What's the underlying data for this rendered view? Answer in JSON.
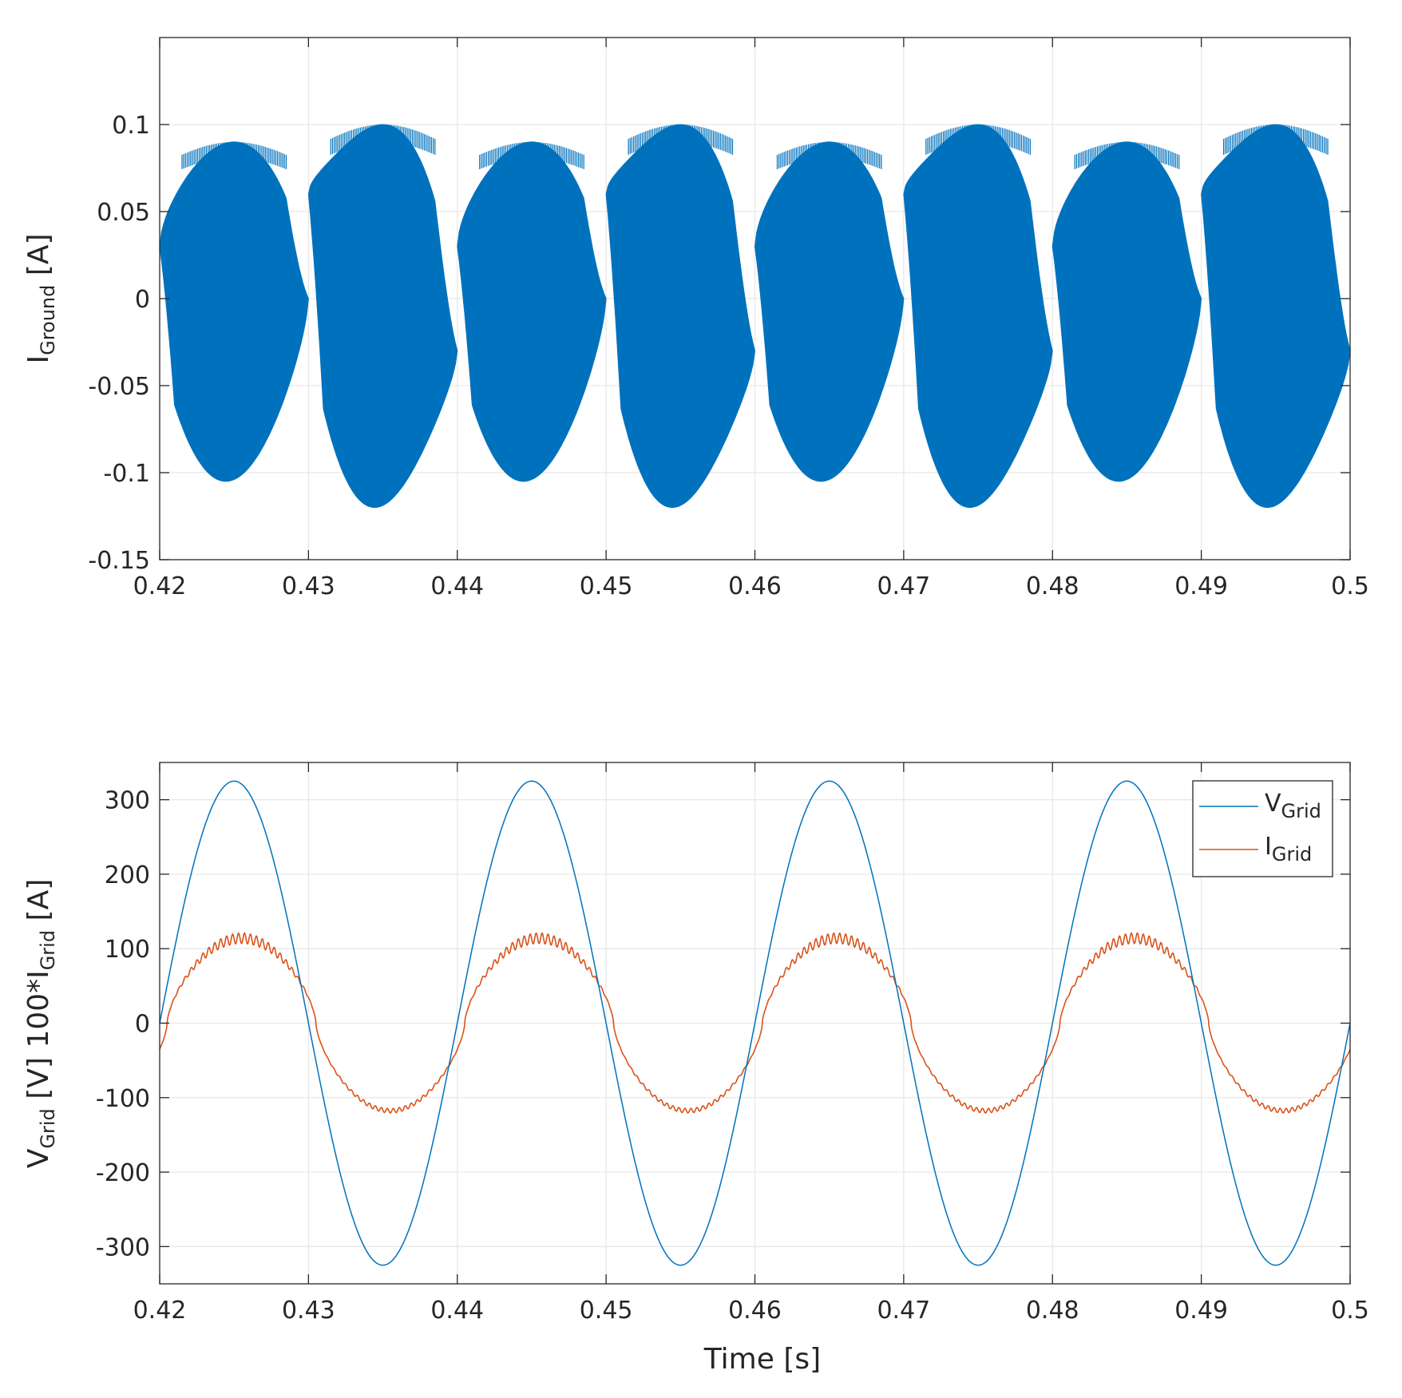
{
  "chart_data": [
    {
      "type": "line",
      "xlim": [
        0.42,
        0.5
      ],
      "ylim": [
        -0.15,
        0.15
      ],
      "xticks": [
        "0.42",
        "0.43",
        "0.44",
        "0.45",
        "0.46",
        "0.47",
        "0.48",
        "0.49",
        "0.5"
      ],
      "yticks": [
        "-0.15",
        "-0.1",
        "-0.05",
        "0",
        "0.05",
        "0.1"
      ],
      "ylabel": {
        "main": "I",
        "sub": "Ground",
        "rest": " [A]"
      },
      "xlabel": "",
      "grid": true,
      "series": [
        {
          "color": "#0072BD",
          "envelope_cycles": [
            {
              "t0": 0.42,
              "t1": 0.43,
              "upper_peak": 0.09,
              "lower_peak": -0.105,
              "start": 0.03,
              "end": 0.0
            },
            {
              "t0": 0.43,
              "t1": 0.44,
              "upper_peak": 0.1,
              "lower_peak": -0.12,
              "start": 0.06,
              "end": -0.03
            },
            {
              "t0": 0.44,
              "t1": 0.45,
              "upper_peak": 0.09,
              "lower_peak": -0.105,
              "start": 0.03,
              "end": 0.0
            },
            {
              "t0": 0.45,
              "t1": 0.46,
              "upper_peak": 0.1,
              "lower_peak": -0.12,
              "start": 0.06,
              "end": -0.03
            },
            {
              "t0": 0.46,
              "t1": 0.47,
              "upper_peak": 0.09,
              "lower_peak": -0.105,
              "start": 0.03,
              "end": 0.0
            },
            {
              "t0": 0.47,
              "t1": 0.48,
              "upper_peak": 0.1,
              "lower_peak": -0.12,
              "start": 0.06,
              "end": -0.03
            },
            {
              "t0": 0.48,
              "t1": 0.49,
              "upper_peak": 0.09,
              "lower_peak": -0.105,
              "start": 0.03,
              "end": 0.0
            },
            {
              "t0": 0.49,
              "t1": 0.5,
              "upper_peak": 0.1,
              "lower_peak": -0.12,
              "start": 0.06,
              "end": -0.03
            }
          ]
        }
      ]
    },
    {
      "type": "line",
      "xlim": [
        0.42,
        0.5
      ],
      "ylim": [
        -350,
        350
      ],
      "xticks": [
        "0.42",
        "0.43",
        "0.44",
        "0.45",
        "0.46",
        "0.47",
        "0.48",
        "0.49",
        "0.5"
      ],
      "yticks": [
        "-300",
        "-200",
        "-100",
        "0",
        "100",
        "200",
        "300"
      ],
      "xlabel": "Time [s]",
      "ylabel": {
        "main": "V",
        "sub": "Grid",
        "rest": " [V]  100*I",
        "sub2": "Grid",
        "rest2": " [A]"
      },
      "grid": true,
      "legend_position": "top-right",
      "series": [
        {
          "name_main": "V",
          "name_sub": "Grid",
          "color": "#0072BD",
          "amplitude": 325,
          "frequency_hz": 50,
          "phase_start": 0.42
        },
        {
          "name_main": "I",
          "name_sub": "Grid",
          "color": "#D95319",
          "peak": 120,
          "crossings": [
            0.4205,
            0.4295,
            0.4395,
            0.4495,
            0.4595,
            0.4695,
            0.4795,
            0.4895,
            0.4995
          ],
          "ripple_amplitude": 7
        }
      ]
    }
  ]
}
